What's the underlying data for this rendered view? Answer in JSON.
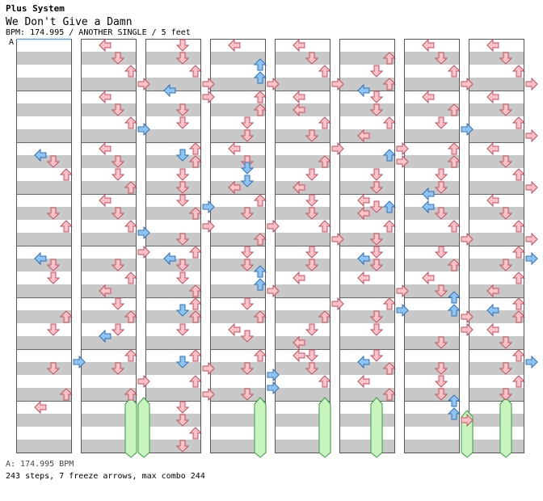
{
  "header": {
    "title": "Plus System",
    "song": "We Don't Give a Damn",
    "info": "BPM: 174.995 / ANOTHER SINGLE / 5 feet"
  },
  "bpm_marker": "A",
  "footer": {
    "bpm_line": "A: 174.995 BPM",
    "stats_line": "243 steps, 7 freeze arrows, max combo 244"
  },
  "colors": {
    "note_red": "#ffc0c8",
    "note_red_stroke": "#c05060",
    "note_blue": "#8ec4f4",
    "note_blue_stroke": "#2f71b8",
    "freeze_fill": "#c8f4c0",
    "freeze_stroke": "#3a9a3a",
    "stripe_gray": "#c8c8c8",
    "bpm_line": "#6aa0d8"
  }
}
